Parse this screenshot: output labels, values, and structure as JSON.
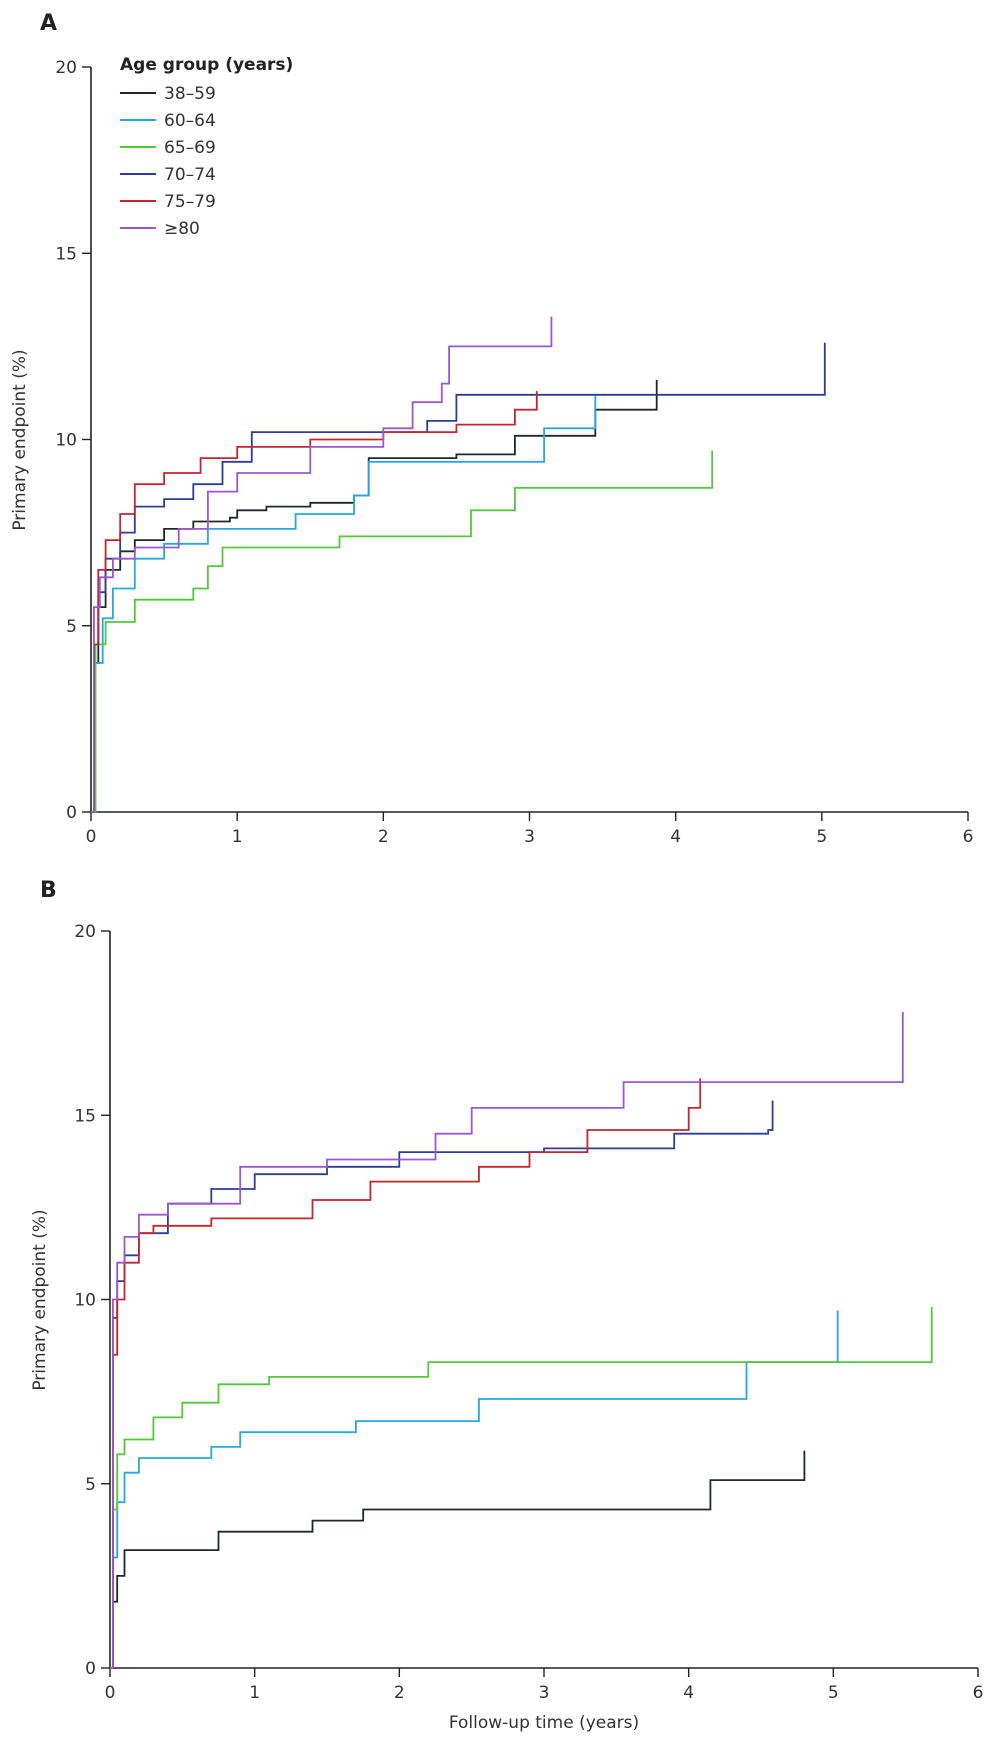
{
  "chart_data": [
    {
      "panel": "A",
      "type": "line",
      "step": true,
      "xlabel": "",
      "ylabel": "Primary endpoint (%)",
      "xlim": [
        0,
        6
      ],
      "ylim": [
        0,
        20
      ],
      "xticks": [
        0,
        1,
        2,
        3,
        4,
        5,
        6
      ],
      "yticks": [
        0,
        5,
        10,
        15,
        20
      ],
      "legend": {
        "title": "Age group (years)",
        "placement": "top-left"
      },
      "series": [
        {
          "name": "38–59",
          "color": "#1c2a2a",
          "x": [
            0,
            0.02,
            0.05,
            0.1,
            0.2,
            0.3,
            0.5,
            0.7,
            0.95,
            1.0,
            1.2,
            1.5,
            1.8,
            1.9,
            2.0,
            2.5,
            2.9,
            3.2,
            3.45,
            3.8,
            3.87
          ],
          "y": [
            0,
            4.0,
            5.5,
            6.5,
            7.0,
            7.3,
            7.6,
            7.8,
            7.9,
            8.1,
            8.2,
            8.3,
            8.5,
            9.5,
            9.5,
            9.6,
            10.1,
            10.1,
            10.8,
            10.8,
            11.6
          ]
        },
        {
          "name": "60–64",
          "color": "#29a7e0",
          "x": [
            0,
            0.03,
            0.08,
            0.15,
            0.3,
            0.5,
            0.8,
            1.1,
            1.4,
            1.8,
            1.9,
            2.0,
            2.5,
            3.0,
            3.1,
            3.4,
            3.45
          ],
          "y": [
            0,
            4.0,
            5.2,
            6.0,
            6.8,
            7.2,
            7.6,
            7.6,
            8.0,
            8.5,
            9.4,
            9.4,
            9.4,
            9.4,
            10.3,
            10.3,
            11.2
          ]
        },
        {
          "name": "65–69",
          "color": "#52c83a",
          "x": [
            0,
            0.03,
            0.1,
            0.3,
            0.7,
            0.8,
            0.9,
            1.0,
            1.7,
            2.6,
            2.9,
            4.25
          ],
          "y": [
            0,
            4.5,
            5.1,
            5.7,
            6.0,
            6.6,
            7.1,
            7.1,
            7.4,
            8.1,
            8.7,
            9.7
          ]
        },
        {
          "name": "70–74",
          "color": "#2b3d99",
          "x": [
            0,
            0.02,
            0.05,
            0.1,
            0.2,
            0.3,
            0.5,
            0.7,
            0.9,
            1.1,
            1.5,
            2.0,
            2.3,
            2.5,
            3.0,
            4.0,
            5.0,
            5.02
          ],
          "y": [
            0,
            4.5,
            5.9,
            6.8,
            7.5,
            8.2,
            8.4,
            8.8,
            9.4,
            10.2,
            10.2,
            10.2,
            10.5,
            11.2,
            11.2,
            11.2,
            11.2,
            12.6
          ]
        },
        {
          "name": "75–79",
          "color": "#c2262e",
          "x": [
            0,
            0.02,
            0.05,
            0.1,
            0.2,
            0.3,
            0.5,
            0.75,
            1.0,
            1.5,
            2.0,
            2.5,
            2.9,
            3.05
          ],
          "y": [
            0,
            4.5,
            6.5,
            7.3,
            8.0,
            8.8,
            9.1,
            9.5,
            9.8,
            10.0,
            10.2,
            10.4,
            10.8,
            11.3
          ]
        },
        {
          "name": "≥80",
          "color": "#9b57d0",
          "x": [
            0,
            0.02,
            0.06,
            0.15,
            0.3,
            0.6,
            0.8,
            1.0,
            1.5,
            2.0,
            2.2,
            2.4,
            2.45,
            3.0,
            3.15
          ],
          "y": [
            0,
            5.5,
            6.3,
            6.8,
            7.1,
            7.6,
            8.6,
            9.1,
            9.8,
            10.3,
            11.0,
            11.5,
            12.5,
            12.5,
            13.3
          ]
        }
      ]
    },
    {
      "panel": "B",
      "type": "line",
      "step": true,
      "xlabel": "Follow-up time (years)",
      "ylabel": "Primary endpoint (%)",
      "xlim": [
        0,
        6
      ],
      "ylim": [
        0,
        20
      ],
      "xticks": [
        0,
        1,
        2,
        3,
        4,
        5,
        6
      ],
      "yticks": [
        0,
        5,
        10,
        15,
        20
      ],
      "legend": null,
      "series": [
        {
          "name": "38–59",
          "color": "#1c2a2a",
          "x": [
            0,
            0.02,
            0.05,
            0.1,
            0.75,
            1.4,
            1.75,
            4.15,
            4.7,
            4.8
          ],
          "y": [
            0,
            1.8,
            2.5,
            3.2,
            3.7,
            4.0,
            4.3,
            5.1,
            5.1,
            5.9
          ]
        },
        {
          "name": "60–64",
          "color": "#29a7e0",
          "x": [
            0,
            0.02,
            0.05,
            0.1,
            0.2,
            0.7,
            0.9,
            1.7,
            2.55,
            4.4,
            5.0,
            5.03
          ],
          "y": [
            0,
            3.0,
            4.5,
            5.3,
            5.7,
            6.0,
            6.4,
            6.7,
            7.3,
            8.3,
            8.3,
            9.7
          ]
        },
        {
          "name": "65–69",
          "color": "#52c83a",
          "x": [
            0,
            0.02,
            0.05,
            0.1,
            0.3,
            0.5,
            0.75,
            1.1,
            2.2,
            5.65,
            5.68
          ],
          "y": [
            0,
            4.3,
            5.8,
            6.2,
            6.8,
            7.2,
            7.7,
            7.9,
            8.3,
            8.3,
            9.8
          ]
        },
        {
          "name": "70–74",
          "color": "#2b3d99",
          "x": [
            0,
            0.02,
            0.05,
            0.1,
            0.2,
            0.4,
            0.7,
            1.0,
            1.5,
            2.0,
            3.0,
            3.9,
            4.55,
            4.58
          ],
          "y": [
            0,
            9.5,
            10.5,
            11.2,
            11.8,
            12.6,
            13.0,
            13.4,
            13.6,
            14.0,
            14.1,
            14.5,
            14.6,
            15.4
          ]
        },
        {
          "name": "75–79",
          "color": "#c2262e",
          "x": [
            0,
            0.02,
            0.05,
            0.1,
            0.2,
            0.3,
            0.7,
            1.4,
            1.8,
            2.55,
            2.9,
            3.3,
            4.0,
            4.08
          ],
          "y": [
            0,
            8.5,
            10.0,
            11.0,
            11.8,
            12.0,
            12.2,
            12.7,
            13.2,
            13.6,
            14.0,
            14.6,
            15.2,
            16.0
          ]
        },
        {
          "name": "≥80",
          "color": "#9b57d0",
          "x": [
            0,
            0.02,
            0.05,
            0.1,
            0.2,
            0.4,
            0.9,
            1.5,
            2.25,
            2.5,
            3.55,
            5.45,
            5.48
          ],
          "y": [
            0,
            10.0,
            11.0,
            11.7,
            12.3,
            12.6,
            13.6,
            13.8,
            14.5,
            15.2,
            15.9,
            15.9,
            17.8
          ]
        }
      ]
    }
  ]
}
